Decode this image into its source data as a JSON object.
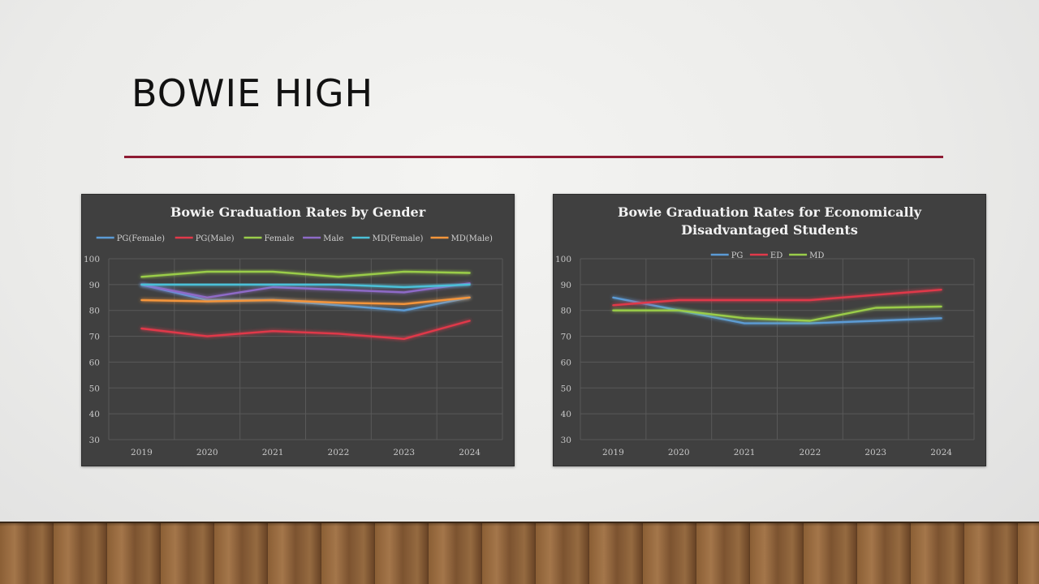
{
  "slide": {
    "title": "BOWIE HIGH"
  },
  "chart_data": [
    {
      "type": "line",
      "title": "Bowie Graduation Rates by Gender",
      "categories": [
        "2019",
        "2020",
        "2021",
        "2022",
        "2023",
        "2024"
      ],
      "yticks": [
        "100",
        "90",
        "80",
        "70",
        "60",
        "50",
        "40",
        "30"
      ],
      "ylim": [
        30,
        100
      ],
      "grid": true,
      "legend": "top",
      "series": [
        {
          "name": "PG(Female)",
          "color": "#5b9bd5",
          "values": [
            90,
            84,
            84,
            82,
            80,
            85
          ]
        },
        {
          "name": "PG(Male)",
          "color": "#e0394a",
          "values": [
            73,
            70,
            72,
            71,
            69,
            76
          ]
        },
        {
          "name": "Female",
          "color": "#9acd4a",
          "values": [
            93,
            95,
            95,
            93,
            95,
            94.5
          ]
        },
        {
          "name": "Male",
          "color": "#8e6bc8",
          "values": [
            90,
            85,
            89,
            88,
            87,
            90.5
          ]
        },
        {
          "name": "MD(Female)",
          "color": "#4bc0d8",
          "values": [
            90,
            90,
            90,
            90,
            89,
            90
          ]
        },
        {
          "name": "MD(Male)",
          "color": "#f5953a",
          "values": [
            84,
            83.5,
            84,
            83,
            82.5,
            85
          ]
        }
      ]
    },
    {
      "type": "line",
      "title_lines": [
        "Bowie Graduation Rates for Economically",
        "Disadvantaged Students"
      ],
      "categories": [
        "2019",
        "2020",
        "2021",
        "2022",
        "2023",
        "2024"
      ],
      "yticks": [
        "100",
        "90",
        "80",
        "70",
        "60",
        "50",
        "40",
        "30"
      ],
      "ylim": [
        30,
        100
      ],
      "grid": true,
      "legend": "top",
      "series": [
        {
          "name": "PG",
          "color": "#5b9bd5",
          "values": [
            85,
            80,
            75,
            75,
            76,
            77
          ]
        },
        {
          "name": "ED",
          "color": "#e0394a",
          "values": [
            82,
            84,
            84,
            84,
            86,
            88
          ]
        },
        {
          "name": "MD",
          "color": "#9acd4a",
          "values": [
            80,
            80,
            77,
            76,
            81,
            81.5
          ]
        }
      ]
    }
  ]
}
